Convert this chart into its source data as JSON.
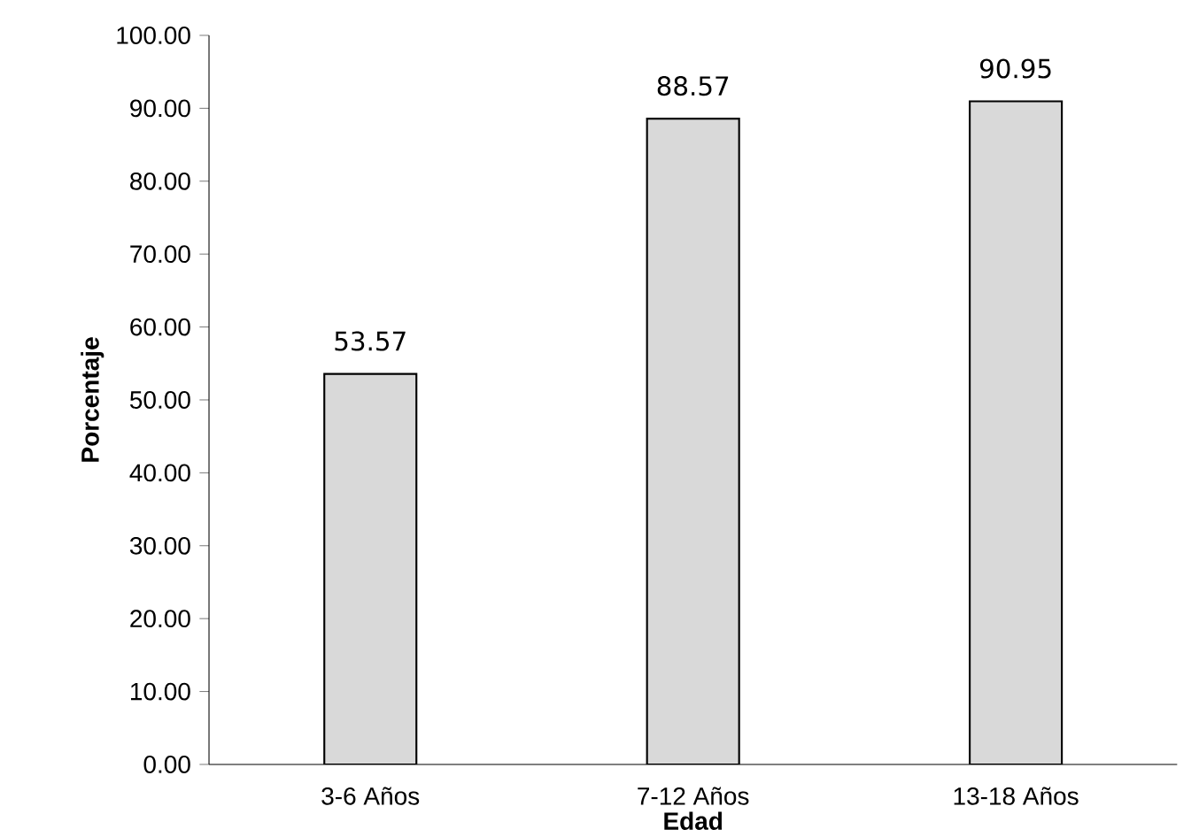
{
  "chart_data": {
    "type": "bar",
    "xlabel": "Edad",
    "ylabel": "Porcentaje",
    "categories": [
      "3-6 Años",
      "7-12 Años",
      "13-18 Años"
    ],
    "values": [
      53.57,
      88.57,
      90.95
    ],
    "color": "#d9d9d9",
    "data_labels": true,
    "grid": false,
    "ylim": [
      0,
      100
    ],
    "yticks": [
      {
        "value": 0,
        "label": "0.00"
      },
      {
        "value": 10,
        "label": "10.00"
      },
      {
        "value": 20,
        "label": "20.00"
      },
      {
        "value": 30,
        "label": "30.00"
      },
      {
        "value": 40,
        "label": "40.00"
      },
      {
        "value": 50,
        "label": "50.00"
      },
      {
        "value": 60,
        "label": "60.00"
      },
      {
        "value": 70,
        "label": "70.00"
      },
      {
        "value": 80,
        "label": "80.00"
      },
      {
        "value": 90,
        "label": "90.00"
      },
      {
        "value": 100,
        "label": "100.00"
      }
    ]
  }
}
